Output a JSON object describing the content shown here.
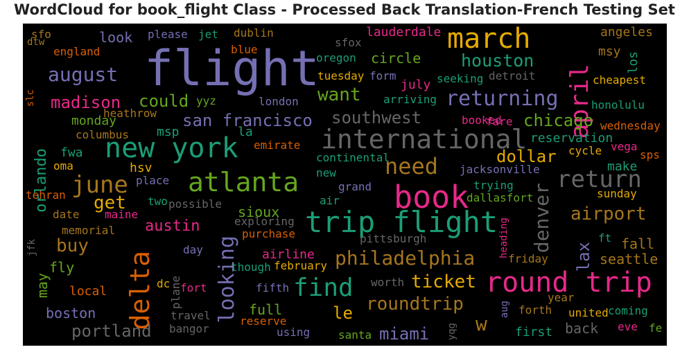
{
  "title": "WordCloud for book_flight Class - Processed Back Translation-French Testing Set",
  "palette": {
    "purple": "#7570b3",
    "green": "#1b9e77",
    "olive": "#66a61e",
    "pink": "#e7298a",
    "orange": "#d95f02",
    "gold": "#e6ab02",
    "brown": "#a6761d",
    "gray": "#666666"
  },
  "words": [
    {
      "text": "flight",
      "color": "purple"
    },
    {
      "text": "march",
      "color": "gold"
    },
    {
      "text": "april",
      "color": "pink"
    },
    {
      "text": "houston",
      "color": "green"
    },
    {
      "text": "lauderdale",
      "color": "pink"
    },
    {
      "text": "angeles",
      "color": "brown"
    },
    {
      "text": "msy",
      "color": "brown"
    },
    {
      "text": "los",
      "color": "green"
    },
    {
      "text": "cheapest",
      "color": "gold"
    },
    {
      "text": "new york",
      "color": "green"
    },
    {
      "text": "international",
      "color": "gray"
    },
    {
      "text": "atlanta",
      "color": "olive"
    },
    {
      "text": "book",
      "color": "pink"
    },
    {
      "text": "trip flight",
      "color": "green"
    },
    {
      "text": "round trip",
      "color": "pink"
    },
    {
      "text": "delta",
      "color": "orange"
    },
    {
      "text": "june",
      "color": "brown"
    },
    {
      "text": "need",
      "color": "brown"
    },
    {
      "text": "return",
      "color": "gray"
    },
    {
      "text": "denver",
      "color": "gray"
    },
    {
      "text": "looking",
      "color": "purple"
    },
    {
      "text": "find",
      "color": "green"
    },
    {
      "text": "philadelphia",
      "color": "brown"
    },
    {
      "text": "returning",
      "color": "purple"
    },
    {
      "text": "august",
      "color": "purple"
    },
    {
      "text": "madison",
      "color": "pink"
    },
    {
      "text": "could",
      "color": "olive"
    },
    {
      "text": "san francisco",
      "color": "purple"
    },
    {
      "text": "southwest",
      "color": "gray"
    },
    {
      "text": "chicago",
      "color": "olive"
    },
    {
      "text": "want",
      "color": "olive"
    },
    {
      "text": "ticket",
      "color": "gold"
    },
    {
      "text": "roundtrip",
      "color": "brown"
    },
    {
      "text": "airport",
      "color": "brown"
    },
    {
      "text": "buy",
      "color": "brown"
    },
    {
      "text": "get",
      "color": "gold"
    },
    {
      "text": "austin",
      "color": "pink"
    },
    {
      "text": "portland",
      "color": "gray"
    },
    {
      "text": "miami",
      "color": "purple"
    },
    {
      "text": "dollar",
      "color": "gold"
    },
    {
      "text": "orlando",
      "color": "green"
    },
    {
      "text": "lax",
      "color": "purple"
    },
    {
      "text": "le",
      "color": "gold"
    },
    {
      "text": "w",
      "color": "brown"
    },
    {
      "text": "circle",
      "color": "olive"
    },
    {
      "text": "look",
      "color": "purple"
    },
    {
      "text": "sfo",
      "color": "brown"
    },
    {
      "text": "please",
      "color": "purple"
    },
    {
      "text": "jet",
      "color": "green"
    },
    {
      "text": "dublin",
      "color": "brown"
    },
    {
      "text": "sfox",
      "color": "gray"
    },
    {
      "text": "dtw",
      "color": "brown"
    },
    {
      "text": "england",
      "color": "orange"
    },
    {
      "text": "blue",
      "color": "orange"
    },
    {
      "text": "oregon",
      "color": "green"
    },
    {
      "text": "tuesday",
      "color": "gold"
    },
    {
      "text": "form",
      "color": "purple"
    },
    {
      "text": "detroit",
      "color": "gray"
    },
    {
      "text": "seeking",
      "color": "green"
    },
    {
      "text": "july",
      "color": "pink"
    },
    {
      "text": "arriving",
      "color": "green"
    },
    {
      "text": "london",
      "color": "purple"
    },
    {
      "text": "heathrow",
      "color": "brown"
    },
    {
      "text": "yyz",
      "color": "olive"
    },
    {
      "text": "slc",
      "color": "orange"
    },
    {
      "text": "monday",
      "color": "olive"
    },
    {
      "text": "columbus",
      "color": "brown"
    },
    {
      "text": "msp",
      "color": "green"
    },
    {
      "text": "la",
      "color": "green"
    },
    {
      "text": "booked",
      "color": "pink"
    },
    {
      "text": "fare",
      "color": "pink"
    },
    {
      "text": "wednesday",
      "color": "orange"
    },
    {
      "text": "honolulu",
      "color": "green"
    },
    {
      "text": "reservation",
      "color": "green"
    },
    {
      "text": "cycle",
      "color": "gold"
    },
    {
      "text": "vega",
      "color": "pink"
    },
    {
      "text": "sps",
      "color": "orange"
    },
    {
      "text": "emirate",
      "color": "orange"
    },
    {
      "text": "fwa",
      "color": "green"
    },
    {
      "text": "oma",
      "color": "gold"
    },
    {
      "text": "hsv",
      "color": "gold"
    },
    {
      "text": "continental",
      "color": "green"
    },
    {
      "text": "new",
      "color": "green"
    },
    {
      "text": "jacksonville",
      "color": "purple"
    },
    {
      "text": "make",
      "color": "green"
    },
    {
      "text": "place",
      "color": "purple"
    },
    {
      "text": "trying",
      "color": "green"
    },
    {
      "text": "sunday",
      "color": "gold"
    },
    {
      "text": "tehran",
      "color": "orange"
    },
    {
      "text": "grand",
      "color": "purple"
    },
    {
      "text": "air",
      "color": "green"
    },
    {
      "text": "dallasfort",
      "color": "olive"
    },
    {
      "text": "two",
      "color": "green"
    },
    {
      "text": "possible",
      "color": "gray"
    },
    {
      "text": "date",
      "color": "brown"
    },
    {
      "text": "maine",
      "color": "pink"
    },
    {
      "text": "sioux",
      "color": "olive"
    },
    {
      "text": "exploring",
      "color": "gray"
    },
    {
      "text": "memorial",
      "color": "brown"
    },
    {
      "text": "purchase",
      "color": "orange"
    },
    {
      "text": "pittsburgh",
      "color": "gray"
    },
    {
      "text": "jfk",
      "color": "gray"
    },
    {
      "text": "ft",
      "color": "green"
    },
    {
      "text": "fall",
      "color": "brown"
    },
    {
      "text": "day",
      "color": "purple"
    },
    {
      "text": "airline",
      "color": "pink"
    },
    {
      "text": "though",
      "color": "green"
    },
    {
      "text": "february",
      "color": "gold"
    },
    {
      "text": "friday",
      "color": "brown"
    },
    {
      "text": "heading",
      "color": "pink"
    },
    {
      "text": "seattle",
      "color": "brown"
    },
    {
      "text": "fly",
      "color": "olive"
    },
    {
      "text": "may",
      "color": "olive"
    },
    {
      "text": "local",
      "color": "orange"
    },
    {
      "text": "dc",
      "color": "gold"
    },
    {
      "text": "fort",
      "color": "pink"
    },
    {
      "text": "plane",
      "color": "gray"
    },
    {
      "text": "fifth",
      "color": "purple"
    },
    {
      "text": "worth",
      "color": "gray"
    },
    {
      "text": "year",
      "color": "brown"
    },
    {
      "text": "boston",
      "color": "purple"
    },
    {
      "text": "full",
      "color": "olive"
    },
    {
      "text": "travel",
      "color": "gray"
    },
    {
      "text": "reserve",
      "color": "orange"
    },
    {
      "text": "bangor",
      "color": "gray"
    },
    {
      "text": "using",
      "color": "purple"
    },
    {
      "text": "santa",
      "color": "olive"
    },
    {
      "text": "yqg",
      "color": "gray"
    },
    {
      "text": "aug",
      "color": "purple"
    },
    {
      "text": "forth",
      "color": "brown"
    },
    {
      "text": "first",
      "color": "green"
    },
    {
      "text": "united",
      "color": "gold"
    },
    {
      "text": "coming",
      "color": "green"
    },
    {
      "text": "back",
      "color": "gray"
    },
    {
      "text": "eve",
      "color": "pink"
    },
    {
      "text": "fe",
      "color": "olive"
    }
  ]
}
